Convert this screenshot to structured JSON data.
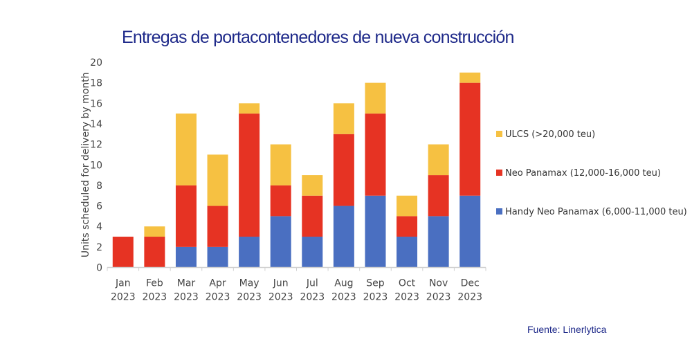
{
  "title": "Entregas de portacontenedores de nueva construcción",
  "source": "Fuente:  Linerlytica",
  "chart_data": {
    "type": "bar",
    "stacked": true,
    "title": "Entregas de portacontenedores de nueva construcción",
    "xlabel": "",
    "ylabel": "Units scheduled for delivery by month",
    "ylim": [
      0,
      20
    ],
    "yticks": [
      0,
      2,
      4,
      6,
      8,
      10,
      12,
      14,
      16,
      18,
      20
    ],
    "grid": false,
    "legend_position": "right",
    "categories": [
      [
        "Jan",
        "2023"
      ],
      [
        "Feb",
        "2023"
      ],
      [
        "Mar",
        "2023"
      ],
      [
        "Apr",
        "2023"
      ],
      [
        "May",
        "2023"
      ],
      [
        "Jun",
        "2023"
      ],
      [
        "Jul",
        "2023"
      ],
      [
        "Aug",
        "2023"
      ],
      [
        "Sep",
        "2023"
      ],
      [
        "Oct",
        "2023"
      ],
      [
        "Nov",
        "2023"
      ],
      [
        "Dec",
        "2023"
      ]
    ],
    "series": [
      {
        "name": "Handy Neo Panamax (6,000-11,000 teu)",
        "color": "#4a6fc1",
        "values": [
          0,
          0,
          2,
          2,
          3,
          5,
          3,
          6,
          7,
          3,
          5,
          7
        ]
      },
      {
        "name": "Neo Panamax (12,000-16,000 teu)",
        "color": "#e63323",
        "values": [
          3,
          3,
          6,
          4,
          12,
          3,
          4,
          7,
          8,
          2,
          4,
          11
        ]
      },
      {
        "name": "ULCS (>20,000 teu)",
        "color": "#f6c142",
        "values": [
          0,
          1,
          7,
          5,
          1,
          4,
          2,
          3,
          3,
          2,
          3,
          1
        ]
      }
    ]
  }
}
